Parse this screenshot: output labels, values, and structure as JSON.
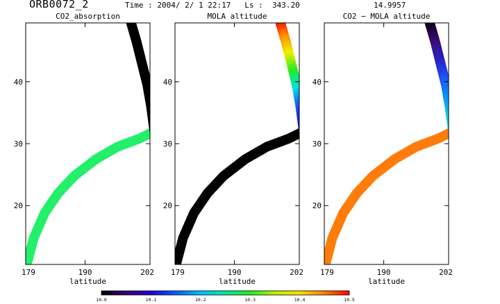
{
  "header": {
    "orbit": "ORB0072_2",
    "time_label": "Time : 2004/ 2/ 1 22:17",
    "ls_label": "Ls :",
    "ls_value": "343.20",
    "extra_value": "14.9957"
  },
  "chart_data": [
    {
      "type": "scatter",
      "title": "CO2_absorption",
      "xlabel": "latitude",
      "ylabel": "",
      "x_ticks": [
        179,
        190,
        202
      ],
      "y_ticks": [
        20,
        30,
        40
      ],
      "xlim": [
        179,
        202
      ],
      "ylim": [
        10.5,
        49.5
      ],
      "track_color_mode": "uniform",
      "upper_branch_color": "#000000",
      "lower_branch_color": "#22f06a"
    },
    {
      "type": "scatter",
      "title": "MOLA altitude",
      "xlabel": "latitude",
      "ylabel": "",
      "x_ticks": [
        179,
        190,
        202
      ],
      "y_ticks": [
        20,
        30,
        40
      ],
      "xlim": [
        179,
        202
      ],
      "ylim": [
        10.5,
        49.5
      ],
      "track_color_mode": "gradient",
      "upper_branch_gradient": [
        "#ff0000",
        "#ff8c00",
        "#f0f000",
        "#22ee22",
        "#00e0e0",
        "#1a4fff",
        "#1a10d0"
      ],
      "lower_branch_color": "#000000"
    },
    {
      "type": "scatter",
      "title": "CO2 − MOLA altitude",
      "xlabel": "latitude",
      "ylabel": "",
      "x_ticks": [
        179,
        190,
        202
      ],
      "y_ticks": [
        20,
        30,
        40
      ],
      "xlim": [
        179,
        202
      ],
      "ylim": [
        10.5,
        49.5
      ],
      "track_color_mode": "gradient",
      "upper_branch_gradient": [
        "#000000",
        "#3a0a6a",
        "#2a20c8",
        "#1a5cff",
        "#00a8ff",
        "#18e8d8"
      ],
      "lower_branch_color": "#ff7c0a"
    }
  ],
  "track": {
    "upper_branch": [
      [
        198.5,
        49.5
      ],
      [
        199.5,
        46.5
      ],
      [
        200.5,
        43.0
      ],
      [
        201.5,
        39.5
      ],
      [
        202.2,
        36.0
      ],
      [
        202.8,
        32.0
      ]
    ],
    "lower_branch": [
      [
        202.8,
        32.0
      ],
      [
        200.0,
        30.8
      ],
      [
        196.0,
        29.5
      ],
      [
        192.0,
        27.5
      ],
      [
        188.0,
        24.8
      ],
      [
        185.0,
        22.0
      ],
      [
        182.5,
        18.8
      ],
      [
        180.5,
        14.8
      ],
      [
        179.2,
        10.5
      ]
    ]
  },
  "colorbar": {
    "min": 10.0,
    "max": 10.5,
    "tick_labels": [
      "10.0",
      "10.1",
      "10.2",
      "10.3",
      "10.4",
      "10.5"
    ],
    "colors": [
      "#000000",
      "#3a0070",
      "#2000d8",
      "#0060ff",
      "#00c0ff",
      "#00e8a0",
      "#20f020",
      "#b8f000",
      "#ffe000",
      "#ff8000",
      "#ff0000"
    ]
  }
}
